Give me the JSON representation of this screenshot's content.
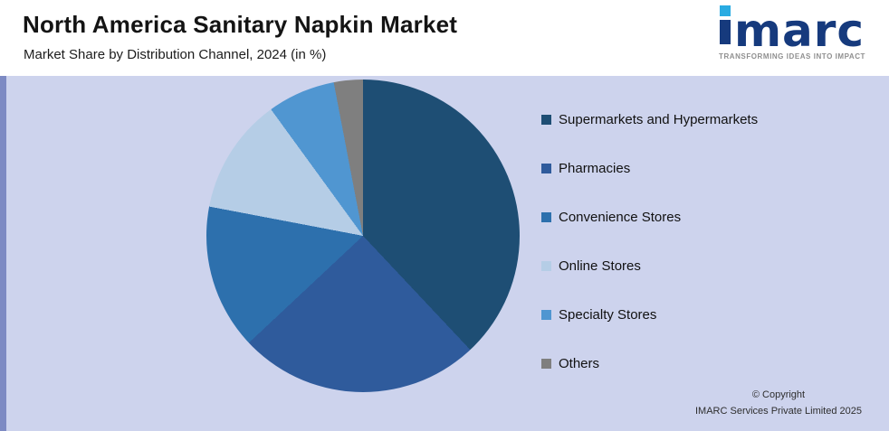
{
  "header": {
    "title": "North America Sanitary Napkin Market",
    "subtitle": "Market Share by Distribution Channel, 2024 (in %)"
  },
  "logo": {
    "wordmark": "imarc",
    "wordmark_rest": "marc",
    "tagline": "TRANSFORMING IDEAS INTO IMPACT",
    "brand_navy": "#163a7d",
    "brand_cyan": "#29abe2"
  },
  "chart_data": {
    "type": "pie",
    "title": "North America Sanitary Napkin Market",
    "subtitle": "Market Share by Distribution Channel, 2024 (in %)",
    "categories": [
      "Supermarkets and Hypermarkets",
      "Pharmacies",
      "Convenience Stores",
      "Online Stores",
      "Specialty Stores",
      "Others"
    ],
    "values": [
      38,
      25,
      15,
      12,
      7,
      3
    ],
    "unit": "%",
    "colors": [
      "#1e4e74",
      "#2f5b9c",
      "#2d70ad",
      "#b5cde6",
      "#5096d1",
      "#7f7f7f"
    ],
    "legend_position": "right",
    "start_angle_deg": 0,
    "direction": "clockwise"
  },
  "footer": {
    "copyright_line1": "© Copyright",
    "copyright_line2": "IMARC Services Private Limited 2025"
  }
}
